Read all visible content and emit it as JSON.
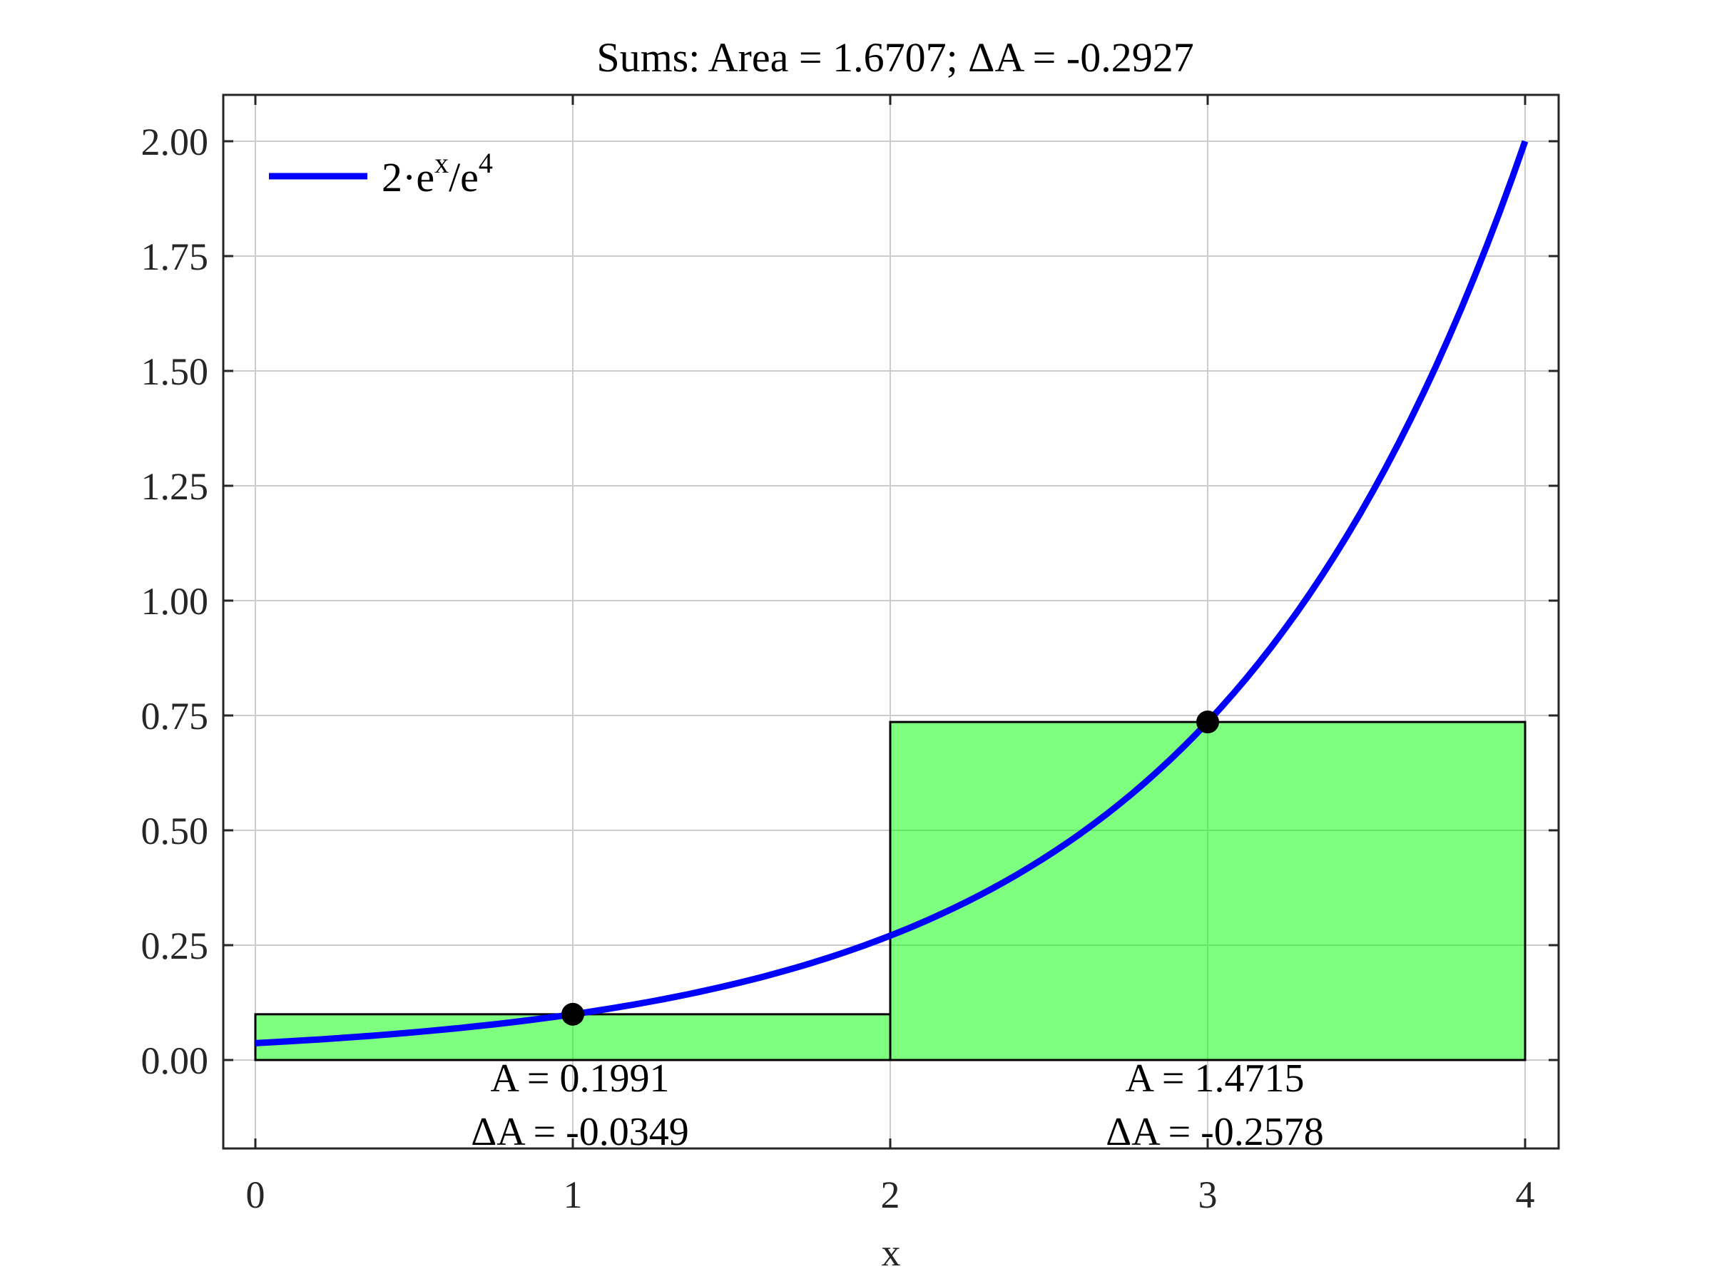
{
  "chart_data": {
    "type": "line",
    "title": "Sums: Area = 1.6707; ΔA = -0.2927",
    "xlabel": "x",
    "ylabel": "",
    "xlim": [
      -0.1,
      4.1
    ],
    "ylim": [
      -0.19,
      2.1
    ],
    "x_ticks": [
      0,
      1,
      2,
      3,
      4
    ],
    "x_tick_labels": [
      "0",
      "1",
      "2",
      "3",
      "4"
    ],
    "y_ticks": [
      0,
      0.25,
      0.5,
      0.75,
      1.0,
      1.25,
      1.5,
      1.75,
      2.0
    ],
    "y_tick_labels": [
      "0.00",
      "0.25",
      "0.50",
      "0.75",
      "1.00",
      "1.25",
      "1.50",
      "1.75",
      "2.00"
    ],
    "grid": true,
    "legend_position": "top-left",
    "series": [
      {
        "name": "2·eˣ/e⁴",
        "legend_main": "2·e",
        "legend_sup1": "x",
        "legend_mid": "/e",
        "legend_sup2": "4",
        "color": "#0000ff",
        "function": "2*exp(x)/exp(4)",
        "x_range": [
          0,
          4
        ]
      }
    ],
    "rectangles": [
      {
        "x0": 0,
        "x1": 2,
        "height": 0.0996,
        "label_area": "A = 0.1991",
        "label_delta": "ΔA = -0.0349"
      },
      {
        "x0": 2,
        "x1": 4,
        "height": 0.7358,
        "label_area": "A = 1.4715",
        "label_delta": "ΔA = -0.2578"
      }
    ],
    "rect_fill": "#00ff00",
    "rect_fill_opacity": 0.5,
    "rect_stroke": "#000000",
    "sample_points": [
      {
        "x": 1,
        "y": 0.0996
      },
      {
        "x": 3,
        "y": 0.7358
      }
    ],
    "point_color": "#000000"
  }
}
